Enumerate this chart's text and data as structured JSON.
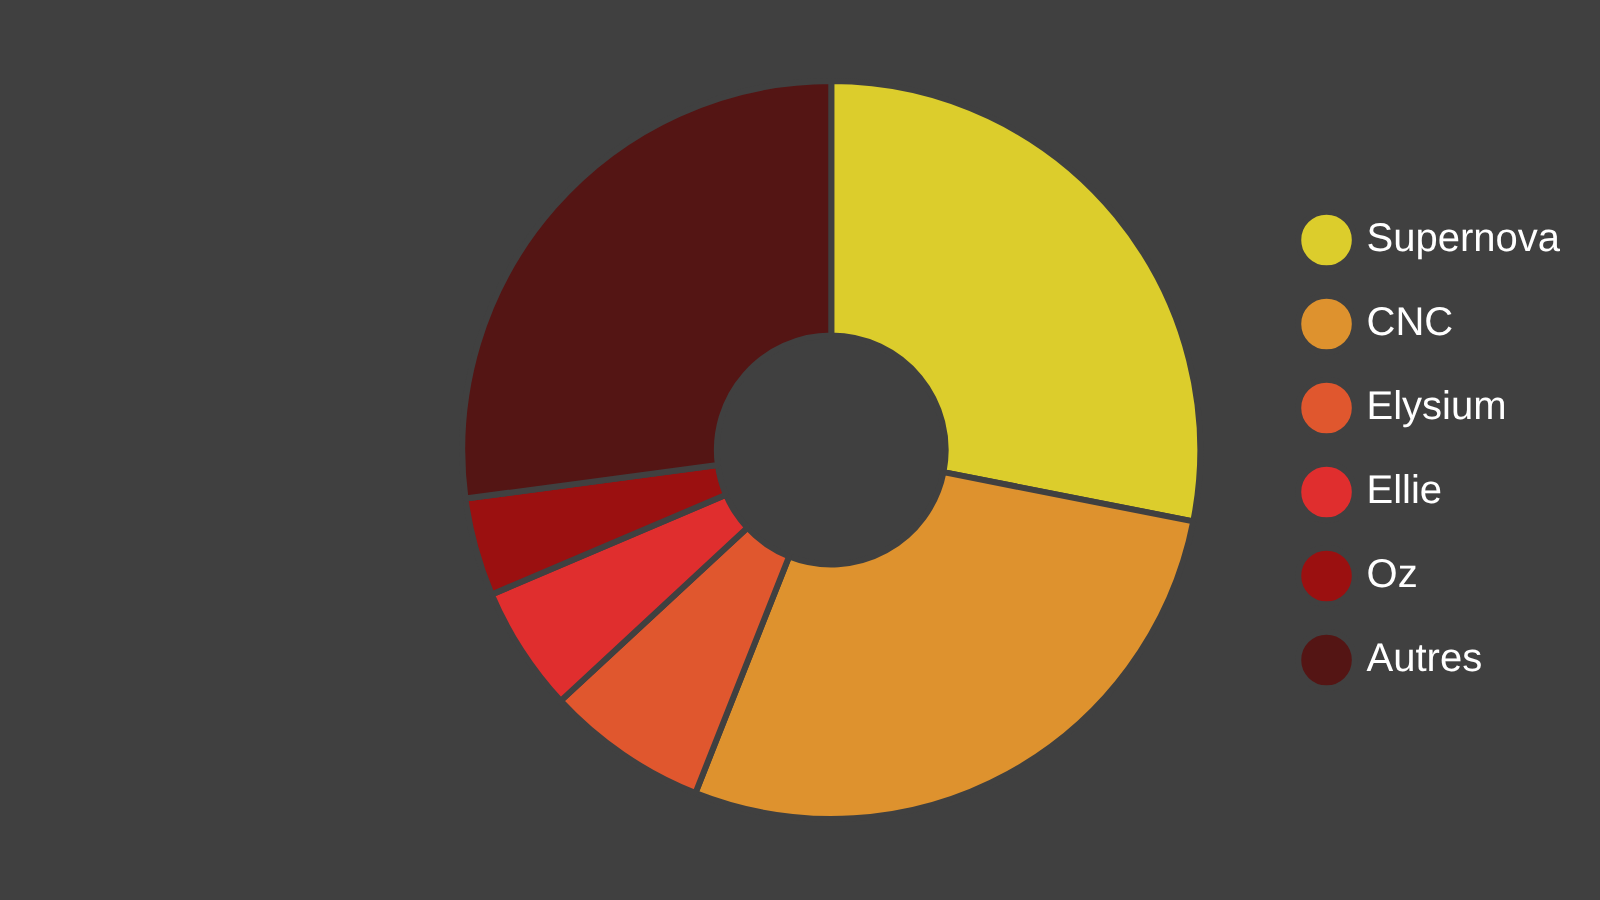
{
  "chart_data": {
    "type": "donut",
    "categories": [
      "Supernova",
      "CNC",
      "Elysium",
      "Ellie",
      "Oz",
      "Autres"
    ],
    "values": [
      28.1,
      27.9,
      7.1,
      5.5,
      4.3,
      27.1
    ],
    "colors": [
      "#dccd2c",
      "#de922e",
      "#e0572e",
      "#e02e2e",
      "#9b1010",
      "#541514"
    ],
    "legend": "right"
  }
}
